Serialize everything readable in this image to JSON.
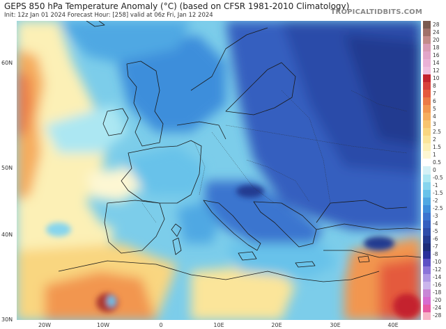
{
  "header": {
    "title": "GEPS 850 hPa Temperature Anomaly (°C) (based on CFSR 1981-2010 Climatology)",
    "subtitle": "Init: 12z Jan 01 2024   Forecast Hour: [258]   valid at 06z Fri, Jan 12 2024",
    "brand": "TROPICALTIDBITS.COM"
  },
  "map": {
    "lat_labels": [
      "60N",
      "50N",
      "40N",
      "30N"
    ],
    "lon_labels": [
      "20W",
      "10W",
      "0",
      "10E",
      "20E",
      "30E",
      "40E"
    ]
  },
  "colorbar": {
    "levels": [
      "28",
      "24",
      "20",
      "18",
      "16",
      "14",
      "12",
      "10",
      "8",
      "7",
      "6",
      "5",
      "4",
      "3",
      "2.5",
      "2",
      "1.5",
      "1",
      "0.5",
      "0",
      "-0.5",
      "-1",
      "-1.5",
      "-2",
      "-2.5",
      "-3",
      "-4",
      "-5",
      "-6",
      "-7",
      "-8",
      "-10",
      "-12",
      "-14",
      "-16",
      "-18",
      "-20",
      "-24",
      "-28"
    ],
    "colors": [
      "#7a5a50",
      "#a0716a",
      "#c38b8a",
      "#d99cb5",
      "#e2a6c9",
      "#eab1d6",
      "#f0bfdf",
      "#c4232e",
      "#d8403c",
      "#e45a3e",
      "#ec7a46",
      "#f29650",
      "#f5ad5f",
      "#f7c46f",
      "#f9d680",
      "#fbe59a",
      "#fcf0b6",
      "#fdf7d3",
      "#ffffff",
      "#d4f1f6",
      "#ace7f2",
      "#86d5ee",
      "#67c2ea",
      "#4fa8e3",
      "#3e8edb",
      "#3a74cf",
      "#345fbf",
      "#2c4ca9",
      "#223a90",
      "#1c2c78",
      "#2a2f9a",
      "#5d4fc4",
      "#8b74d9",
      "#b098e4",
      "#cbb6ec",
      "#c886d6",
      "#d76bd0",
      "#e85aa4",
      "#f7b5c8"
    ]
  }
}
